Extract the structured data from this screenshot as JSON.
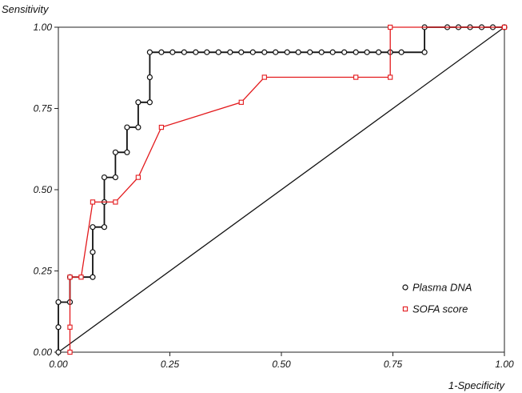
{
  "chart_data": {
    "type": "line",
    "ylabel": "Sensitivity",
    "xlabel": "1-Specificity",
    "xlim": [
      0,
      1
    ],
    "ylim": [
      0,
      1
    ],
    "x_ticks": [
      0,
      0.25,
      0.5,
      0.75,
      1
    ],
    "y_ticks": [
      0,
      0.25,
      0.5,
      0.75,
      1
    ],
    "x_tick_labels": [
      "0.00",
      "0.25",
      "0.50",
      "0.75",
      "1.00"
    ],
    "y_tick_labels": [
      "0.00",
      "0.25",
      "0.50",
      "0.75",
      "1.00"
    ],
    "legend_position": "bottom-right",
    "reference_line": [
      [
        0,
        0
      ],
      [
        1,
        1
      ]
    ],
    "series": [
      {
        "name": "Plasma DNA",
        "color": "#111111",
        "marker": "circle",
        "step": true,
        "points": [
          [
            0,
            0
          ],
          [
            0,
            0.077
          ],
          [
            0,
            0.154
          ],
          [
            0.026,
            0.154
          ],
          [
            0.026,
            0.231
          ],
          [
            0.077,
            0.231
          ],
          [
            0.077,
            0.308
          ],
          [
            0.077,
            0.385
          ],
          [
            0.103,
            0.385
          ],
          [
            0.103,
            0.462
          ],
          [
            0.103,
            0.538
          ],
          [
            0.128,
            0.538
          ],
          [
            0.128,
            0.615
          ],
          [
            0.154,
            0.615
          ],
          [
            0.154,
            0.692
          ],
          [
            0.179,
            0.692
          ],
          [
            0.179,
            0.769
          ],
          [
            0.205,
            0.769
          ],
          [
            0.205,
            0.846
          ],
          [
            0.205,
            0.923
          ],
          [
            0.231,
            0.923
          ],
          [
            0.256,
            0.923
          ],
          [
            0.282,
            0.923
          ],
          [
            0.308,
            0.923
          ],
          [
            0.333,
            0.923
          ],
          [
            0.359,
            0.923
          ],
          [
            0.385,
            0.923
          ],
          [
            0.41,
            0.923
          ],
          [
            0.436,
            0.923
          ],
          [
            0.462,
            0.923
          ],
          [
            0.487,
            0.923
          ],
          [
            0.513,
            0.923
          ],
          [
            0.538,
            0.923
          ],
          [
            0.564,
            0.923
          ],
          [
            0.59,
            0.923
          ],
          [
            0.615,
            0.923
          ],
          [
            0.641,
            0.923
          ],
          [
            0.667,
            0.923
          ],
          [
            0.692,
            0.923
          ],
          [
            0.718,
            0.923
          ],
          [
            0.744,
            0.923
          ],
          [
            0.769,
            0.923
          ],
          [
            0.821,
            0.923
          ],
          [
            0.821,
            1.0
          ],
          [
            0.872,
            1.0
          ],
          [
            0.897,
            1.0
          ],
          [
            0.923,
            1.0
          ],
          [
            0.949,
            1.0
          ],
          [
            0.974,
            1.0
          ],
          [
            1.0,
            1.0
          ]
        ]
      },
      {
        "name": "SOFA score",
        "color": "#e3191c",
        "marker": "square",
        "step": false,
        "points": [
          [
            0.026,
            0
          ],
          [
            0.026,
            0.077
          ],
          [
            0.026,
            0.231
          ],
          [
            0.051,
            0.231
          ],
          [
            0.077,
            0.462
          ],
          [
            0.128,
            0.462
          ],
          [
            0.179,
            0.538
          ],
          [
            0.231,
            0.692
          ],
          [
            0.41,
            0.769
          ],
          [
            0.462,
            0.846
          ],
          [
            0.667,
            0.846
          ],
          [
            0.744,
            0.846
          ],
          [
            0.744,
            1.0
          ],
          [
            1.0,
            1.0
          ]
        ]
      }
    ]
  }
}
